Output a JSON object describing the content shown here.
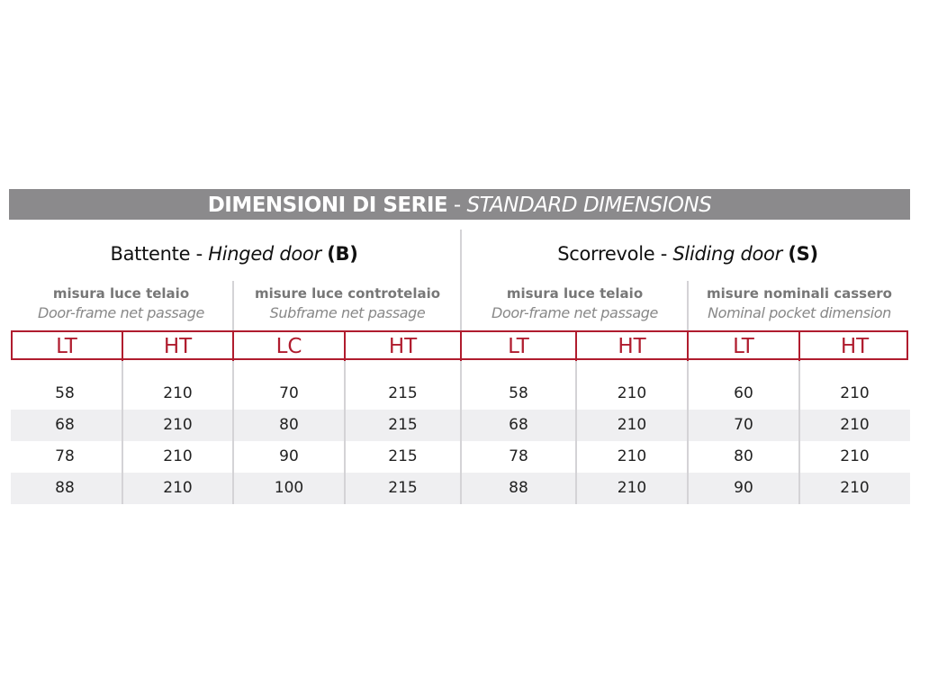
{
  "title": {
    "main": "DIMENSIONI DI SERIE",
    "separator": " - ",
    "sub": "STANDARD DIMENSIONS"
  },
  "groups": [
    {
      "it": "Battente",
      "sep": " - ",
      "en": "Hinged door",
      "code": "(B)",
      "subs": [
        {
          "it": "misura luce telaio",
          "en": "Door-frame net passage"
        },
        {
          "it": "misure luce controtelaio",
          "en": "Subframe net passage"
        }
      ]
    },
    {
      "it": "Scorrevole",
      "sep": " - ",
      "en": "Sliding door",
      "code": "(S)",
      "subs": [
        {
          "it": "misura luce telaio",
          "en": "Door-frame net passage"
        },
        {
          "it": "misure nominali cassero",
          "en": "Nominal pocket dimension"
        }
      ]
    }
  ],
  "columns": [
    "LT",
    "HT",
    "LC",
    "HT",
    "LT",
    "HT",
    "LT",
    "HT"
  ],
  "rows": [
    [
      "58",
      "210",
      "70",
      "215",
      "58",
      "210",
      "60",
      "210"
    ],
    [
      "68",
      "210",
      "80",
      "215",
      "68",
      "210",
      "70",
      "210"
    ],
    [
      "78",
      "210",
      "90",
      "215",
      "78",
      "210",
      "80",
      "210"
    ],
    [
      "88",
      "210",
      "100",
      "215",
      "88",
      "210",
      "90",
      "210"
    ]
  ],
  "colors": {
    "title_bar": "#8b8a8c",
    "accent_red": "#b01c2e",
    "stripe": "#efeff1"
  }
}
